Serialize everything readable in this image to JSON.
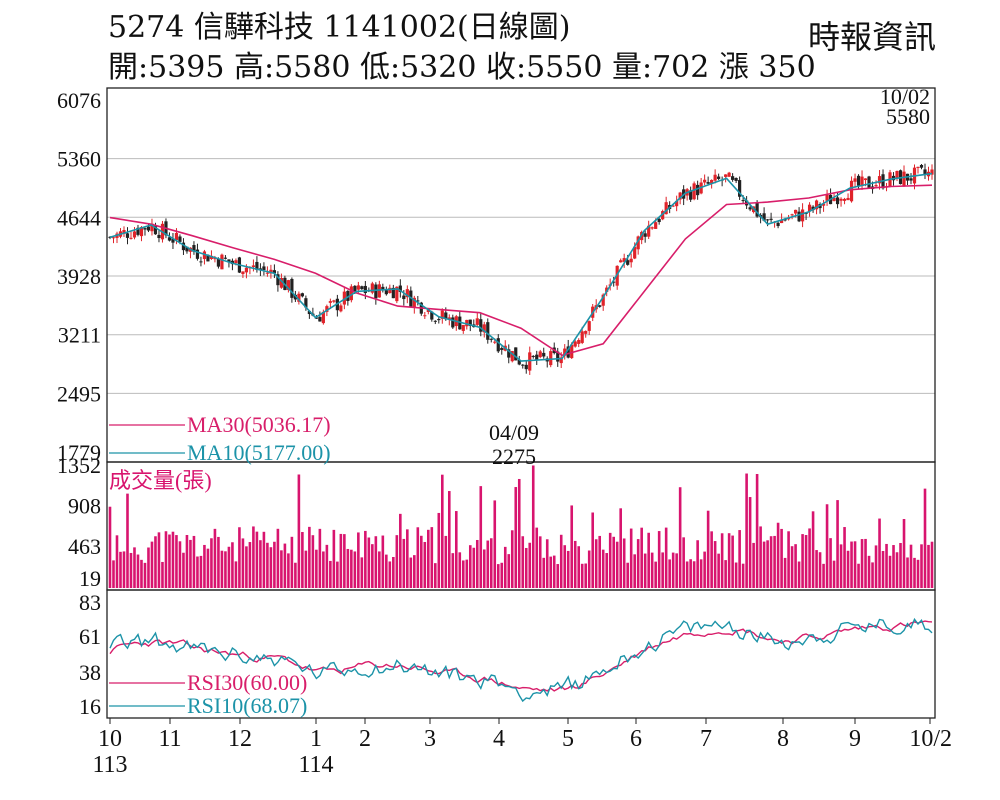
{
  "header": {
    "title": "5274  信驊科技 1141002(日線圖)",
    "ohlc": "開:5395 高:5580 低:5320 收:5550 量:702 漲 350",
    "source": "時報資訊"
  },
  "colors": {
    "up": "#e0232a",
    "down": "#222222",
    "ma30": "#d81e6a",
    "ma10": "#1c93a8",
    "volume": "#d8146e",
    "rsi30": "#d81e6a",
    "rsi10": "#1c93a8",
    "grid": "#bbbbbb"
  },
  "chart_data": [
    {
      "type": "candlestick",
      "panel": "price",
      "ylim": [
        1779,
        6076
      ],
      "yticks": [
        "6076",
        "5360",
        "4644",
        "3928",
        "3211",
        "2495",
        "1779"
      ],
      "grid": true,
      "ma_path": {
        "ma30": [
          [
            0,
            4640
          ],
          [
            0.05,
            4560
          ],
          [
            0.1,
            4420
          ],
          [
            0.15,
            4270
          ],
          [
            0.2,
            4130
          ],
          [
            0.25,
            3960
          ],
          [
            0.3,
            3720
          ],
          [
            0.35,
            3560
          ],
          [
            0.4,
            3520
          ],
          [
            0.45,
            3480
          ],
          [
            0.5,
            3290
          ],
          [
            0.55,
            2960
          ],
          [
            0.6,
            3100
          ],
          [
            0.65,
            3740
          ],
          [
            0.7,
            4380
          ],
          [
            0.75,
            4800
          ],
          [
            0.8,
            4830
          ],
          [
            0.85,
            4880
          ],
          [
            0.9,
            4980
          ],
          [
            0.95,
            5020
          ],
          [
            1,
            5036
          ]
        ],
        "ma10": [
          [
            0,
            4400
          ],
          [
            0.05,
            4550
          ],
          [
            0.1,
            4240
          ],
          [
            0.15,
            4080
          ],
          [
            0.2,
            3960
          ],
          [
            0.25,
            3420
          ],
          [
            0.3,
            3740
          ],
          [
            0.35,
            3770
          ],
          [
            0.4,
            3430
          ],
          [
            0.45,
            3300
          ],
          [
            0.5,
            2890
          ],
          [
            0.55,
            2920
          ],
          [
            0.6,
            3670
          ],
          [
            0.65,
            4480
          ],
          [
            0.7,
            4940
          ],
          [
            0.75,
            5120
          ],
          [
            0.8,
            4560
          ],
          [
            0.85,
            4710
          ],
          [
            0.9,
            5000
          ],
          [
            0.95,
            5110
          ],
          [
            1,
            5177
          ]
        ]
      },
      "series": [
        {
          "name": "MA30(5036.17)",
          "last": 5036.17
        },
        {
          "name": "MA10(5177.00)",
          "last": 5177.0
        }
      ],
      "annotations": [
        {
          "date": "10/02",
          "value": "5580",
          "position": "top-right"
        },
        {
          "date": "04/09",
          "value": "2275",
          "position": "bottom"
        }
      ]
    },
    {
      "type": "bar",
      "panel": "volume",
      "title": "成交量(張)",
      "ylim": [
        19,
        1352
      ],
      "yticks": [
        "1352",
        "908",
        "463",
        "19"
      ],
      "last": 702
    },
    {
      "type": "line",
      "panel": "rsi",
      "ylim": [
        16,
        83
      ],
      "yticks": [
        "83",
        "61",
        "38",
        "16"
      ],
      "series": [
        {
          "name": "RSI30(60.00)",
          "last": 60.0
        },
        {
          "name": "RSI10(68.07)",
          "last": 68.07
        }
      ]
    }
  ],
  "xaxis": {
    "ticks": [
      "10",
      "11",
      "12",
      "1",
      "2",
      "3",
      "4",
      "5",
      "6",
      "7",
      "8",
      "9",
      "10/2"
    ],
    "years": [
      "113",
      "114"
    ]
  }
}
